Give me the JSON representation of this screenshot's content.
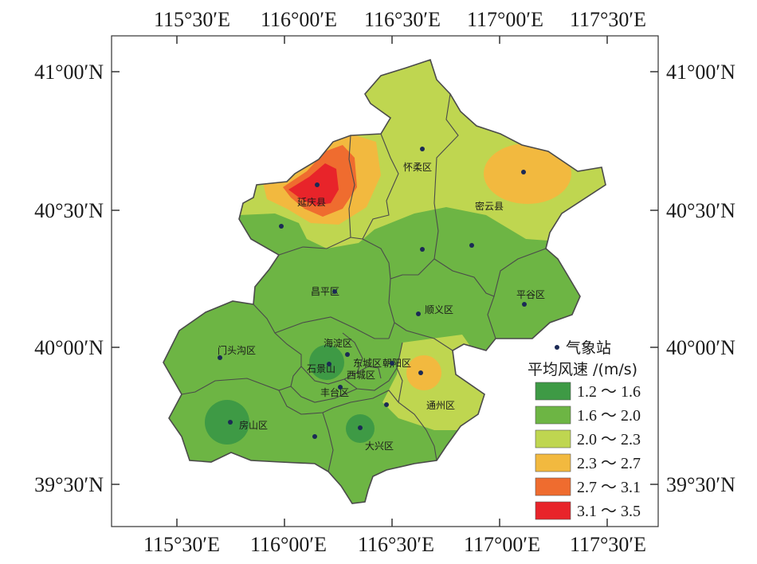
{
  "map": {
    "top_axis": [
      "115°30′E",
      "116°00′E",
      "116°30′E",
      "117°00′E",
      "117°30′E"
    ],
    "bottom_axis": [
      "115°30′E",
      "116°00′E",
      "116°30′E",
      "117°00′E",
      "117°30′E"
    ],
    "left_axis": [
      "41°00′N",
      "40°30′N",
      "40°00′N",
      "39°30′N"
    ],
    "right_axis": [
      "41°00′N",
      "40°30′N",
      "40°00′N",
      "39°30′N"
    ],
    "districts": [
      "延庆县",
      "怀柔区",
      "密云县",
      "昌平区",
      "顺义区",
      "平谷区",
      "门头沟区",
      "海淀区",
      "石景山",
      "东城区",
      "朝阳区",
      "西城区",
      "丰台区",
      "房山区",
      "大兴区",
      "通州区"
    ],
    "colors": {
      "c1": "#3e9a45",
      "c2": "#6db544",
      "c3": "#bfd650",
      "c4": "#f2b93f",
      "c5": "#ef6c2f",
      "c6": "#e8242a",
      "border": "#4a4a4a",
      "station": "#1b2a55"
    }
  },
  "legend": {
    "station_label": "气象站",
    "title": "平均风速 /(m/s)",
    "items": [
      {
        "label": "1.2 ～ 1.6",
        "color": "#3e9a45"
      },
      {
        "label": "1.6 ～ 2.0",
        "color": "#6db544"
      },
      {
        "label": "2.0 ～ 2.3",
        "color": "#bfd650"
      },
      {
        "label": "2.3 ～ 2.7",
        "color": "#f2b93f"
      },
      {
        "label": "2.7 ～ 3.1",
        "color": "#ef6c2f"
      },
      {
        "label": "3.1 ～ 3.5",
        "color": "#e8242a"
      }
    ]
  }
}
